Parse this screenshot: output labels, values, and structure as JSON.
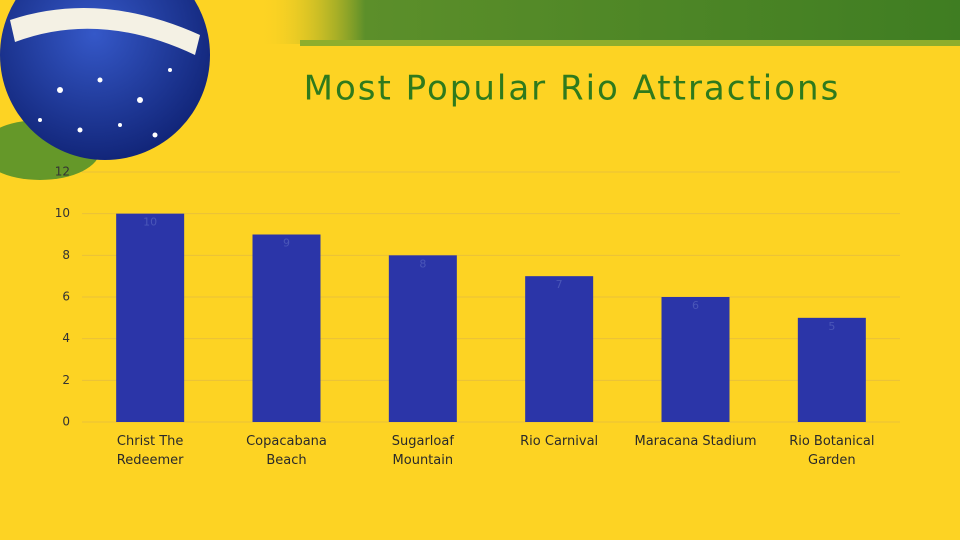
{
  "chart_data": {
    "type": "bar",
    "title": "Most Popular Rio Attractions",
    "categories": [
      "Christ The Redeemer",
      "Copacabana Beach",
      "Sugarloaf Mountain",
      "Rio Carnival",
      "Maracana Stadium",
      "Rio Botanical Garden"
    ],
    "values": [
      10,
      9,
      8,
      7,
      6,
      5
    ],
    "color": "#2b35a8",
    "ylim": [
      0,
      12
    ],
    "yticks": [
      0,
      2,
      4,
      6,
      8,
      10,
      12
    ],
    "grid": true
  }
}
